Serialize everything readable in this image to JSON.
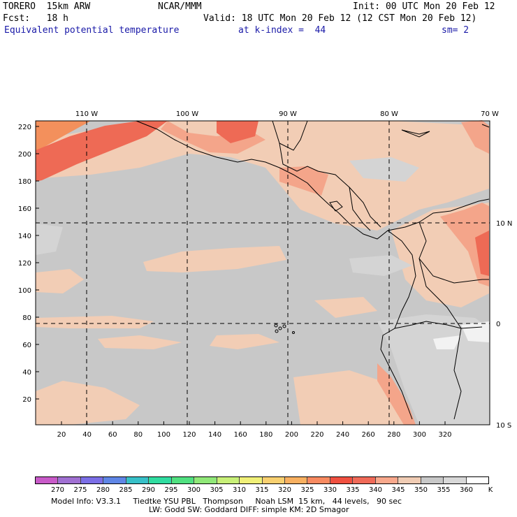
{
  "header": {
    "model": "TORERO  15km ARW",
    "org": "NCAR/MMM",
    "init": "Init: 00 UTC Mon 20 Feb 12",
    "fcst": "Fcst:   18 h",
    "valid": "Valid: 18 UTC Mon 20 Feb 12 (12 CST Mon 20 Feb 12)",
    "field": "Equivalent potential temperature",
    "level": "at k-index =  44",
    "smooth": "sm= 2"
  },
  "map": {
    "top_lon_labels": [
      "110 W",
      "100 W",
      "90 W",
      "80 W",
      "70 W"
    ],
    "right_lat_labels": [
      "10 N",
      "0",
      "10 S"
    ],
    "left_ticks": [
      "220",
      "200",
      "180",
      "160",
      "140",
      "120",
      "100",
      "80",
      "60",
      "40",
      "20"
    ],
    "bottom_ticks": [
      "20",
      "40",
      "60",
      "80",
      "100",
      "120",
      "140",
      "160",
      "180",
      "200",
      "220",
      "240",
      "260",
      "280",
      "300",
      "320"
    ],
    "colors": {
      "base": "#c8c8c8",
      "warm_light": "#f2cdb5",
      "warm": "#f4a58a",
      "hot": "#ee6a55",
      "hottest": "#e8463e",
      "orange": "#f3905c",
      "cool": "#d4d4d4",
      "white": "#f2f2f2"
    }
  },
  "colorbar": {
    "labels": [
      "270",
      "275",
      "280",
      "285",
      "290",
      "295",
      "300",
      "305",
      "310",
      "315",
      "320",
      "325",
      "330",
      "335",
      "340",
      "345",
      "350",
      "355",
      "360"
    ],
    "unit": "K",
    "colors": [
      "#c85ac8",
      "#a070d2",
      "#7b6ee6",
      "#5f86e6",
      "#37c0c8",
      "#30dca0",
      "#50e080",
      "#90e878",
      "#c8f078",
      "#f0f078",
      "#f8d070",
      "#f8b060",
      "#f88a60",
      "#f05040",
      "#f06a58",
      "#f8a88c",
      "#f0ccb4",
      "#c8c8c8",
      "#d8d8d8",
      "#ffffff"
    ]
  },
  "footer": {
    "line1": "Model Info: V3.3.1     Tiedtke YSU PBL   Thompson     Noah LSM  15 km,   44 levels,   90 sec",
    "line2": "LW: Godd SW: Goddard DIFF: simple KM: 2D Smagor"
  }
}
